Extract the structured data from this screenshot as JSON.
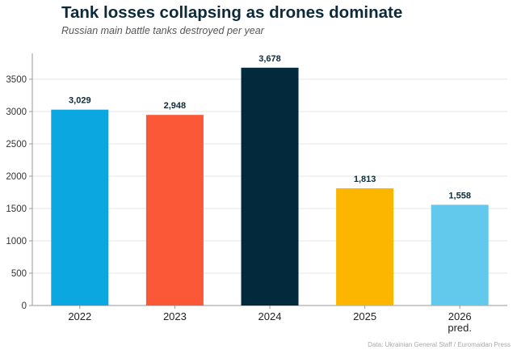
{
  "chart_data": {
    "type": "bar",
    "title": "Tank losses collapsing as drones dominate",
    "subtitle": "Russian main battle tanks destroyed per year",
    "categories": [
      "2022",
      "2023",
      "2024",
      "2025",
      "2026"
    ],
    "category_sublabels": [
      "",
      "",
      "",
      "",
      "pred."
    ],
    "values": [
      3029,
      2948,
      3678,
      1813,
      1558
    ],
    "value_labels": [
      "3,029",
      "2,948",
      "3,678",
      "1,813",
      "1,558"
    ],
    "colors": [
      "#0aa7e1",
      "#fb5837",
      "#022a3c",
      "#fdb600",
      "#63c9ec"
    ],
    "yticks": [
      0,
      500,
      1000,
      1500,
      2000,
      2500,
      3000,
      3500
    ],
    "ylim": [
      0,
      3900
    ],
    "xlabel": "",
    "ylabel": "",
    "grid": true,
    "source": "Data: Ukrainian General Staff / Euromaidan Press"
  }
}
